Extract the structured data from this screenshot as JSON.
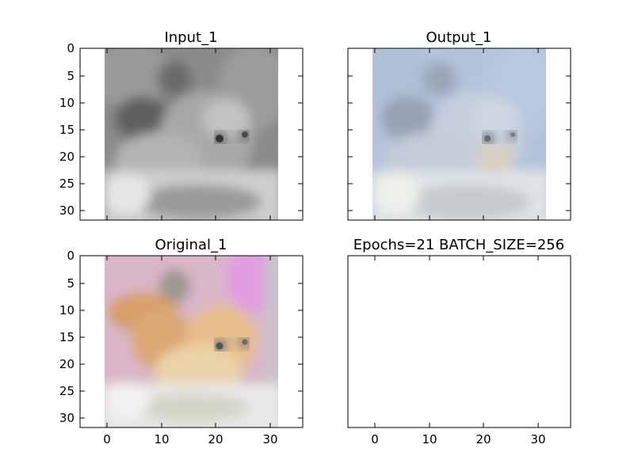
{
  "chart_data": [
    {
      "type": "image",
      "title": "Input_1",
      "image_kind": "grayscale",
      "image_size": [
        32,
        32
      ],
      "xlim": [
        -5,
        36
      ],
      "ylim": [
        31.5,
        -0.5
      ],
      "xticks": [
        0,
        10,
        20,
        30
      ],
      "yticks": [
        0,
        5,
        10,
        15,
        20,
        25,
        30
      ],
      "show_xticklabels": false,
      "show_yticklabels": true,
      "colors": {
        "bg": "#8a8a8a",
        "light": "#e6e6e6",
        "dark": "#3a3a3a",
        "patch": "#6a6a6a"
      }
    },
    {
      "type": "image",
      "title": "Output_1",
      "image_kind": "colorized",
      "image_size": [
        32,
        32
      ],
      "xlim": [
        -5,
        36
      ],
      "ylim": [
        31.5,
        -0.5
      ],
      "xticks": [
        0,
        10,
        20,
        30
      ],
      "yticks": [
        0,
        5,
        10,
        15,
        20,
        25,
        30
      ],
      "show_xticklabels": false,
      "show_yticklabels": false,
      "colors": {
        "bg": "#b3c3dc",
        "light": "#e2e8ec",
        "dark": "#6a707a",
        "patch": "#9aa6b6"
      }
    },
    {
      "type": "image",
      "title": "Original_1",
      "image_kind": "color",
      "image_size": [
        32,
        32
      ],
      "xlim": [
        -5,
        36
      ],
      "ylim": [
        31.5,
        -0.5
      ],
      "xticks": [
        0,
        10,
        20,
        30
      ],
      "yticks": [
        0,
        5,
        10,
        15,
        20,
        25,
        30
      ],
      "show_xticklabels": true,
      "show_yticklabels": true,
      "colors": {
        "bg": "#d9b6c8",
        "light": "#eeeeee",
        "dark": "#4a4a4a",
        "patch": "#e3a46a",
        "accent": "#e19ee0"
      }
    },
    {
      "type": "empty",
      "title": "Epochs=21 BATCH_SIZE=256",
      "xlim": [
        -5,
        36
      ],
      "xticks": [
        0,
        10,
        20,
        30
      ],
      "yticks": [],
      "show_xticklabels": true,
      "show_yticklabels": false
    }
  ]
}
